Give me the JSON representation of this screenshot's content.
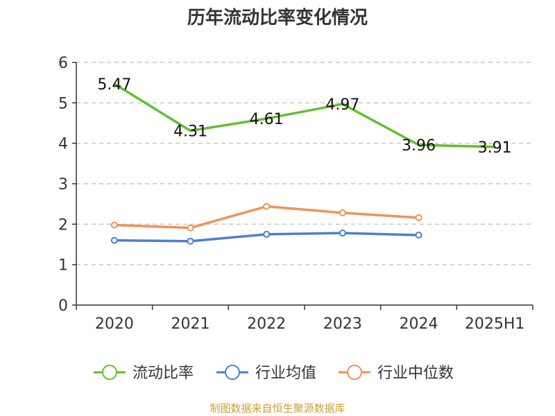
{
  "chart_data": {
    "type": "line",
    "title": "历年流动比率变化情况",
    "categories": [
      "2020",
      "2021",
      "2022",
      "2023",
      "2024",
      "2025H1"
    ],
    "ylim": [
      0,
      6
    ],
    "yticks": [
      0,
      1,
      2,
      3,
      4,
      5,
      6
    ],
    "grid": true,
    "legend": "bottom",
    "series": [
      {
        "name": "流动比率",
        "color": "#5cc22b",
        "values": [
          5.47,
          4.31,
          4.61,
          4.97,
          3.96,
          3.91
        ],
        "show_labels": true,
        "show_markers": false
      },
      {
        "name": "行业均值",
        "color": "#4a7fd6",
        "values": [
          1.6,
          1.58,
          1.75,
          1.78,
          1.73,
          null
        ],
        "show_labels": false,
        "show_markers": true
      },
      {
        "name": "行业中位数",
        "color": "#f39157",
        "values": [
          1.98,
          1.91,
          2.44,
          2.28,
          2.16,
          null
        ],
        "show_labels": false,
        "show_markers": true
      }
    ]
  },
  "source_text": "制图数据来自恒生聚源数据库"
}
